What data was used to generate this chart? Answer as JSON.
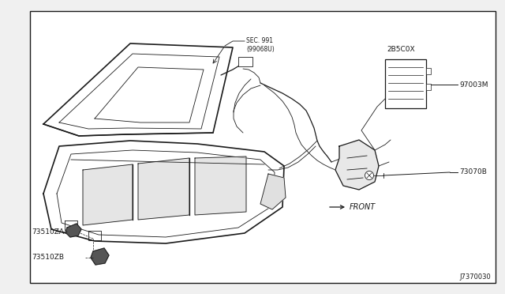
{
  "bg_color": "#ffffff",
  "border_color": "#000000",
  "line_color": "#1a1a1a",
  "diagram_id": "J7370030",
  "labels": {
    "sec991": "SEC. 991\n(99068U)",
    "part_2B5C0X": "2B5C0X",
    "part_97003M": "97003M",
    "part_73070B": "73070B",
    "part_73510ZA": "73510ZA",
    "part_73510ZB": "73510ZB",
    "front": "FRONT",
    "diagram_num": "J7370030"
  },
  "fig_bg": "#f0f0f0",
  "inner_bg": "#ffffff"
}
